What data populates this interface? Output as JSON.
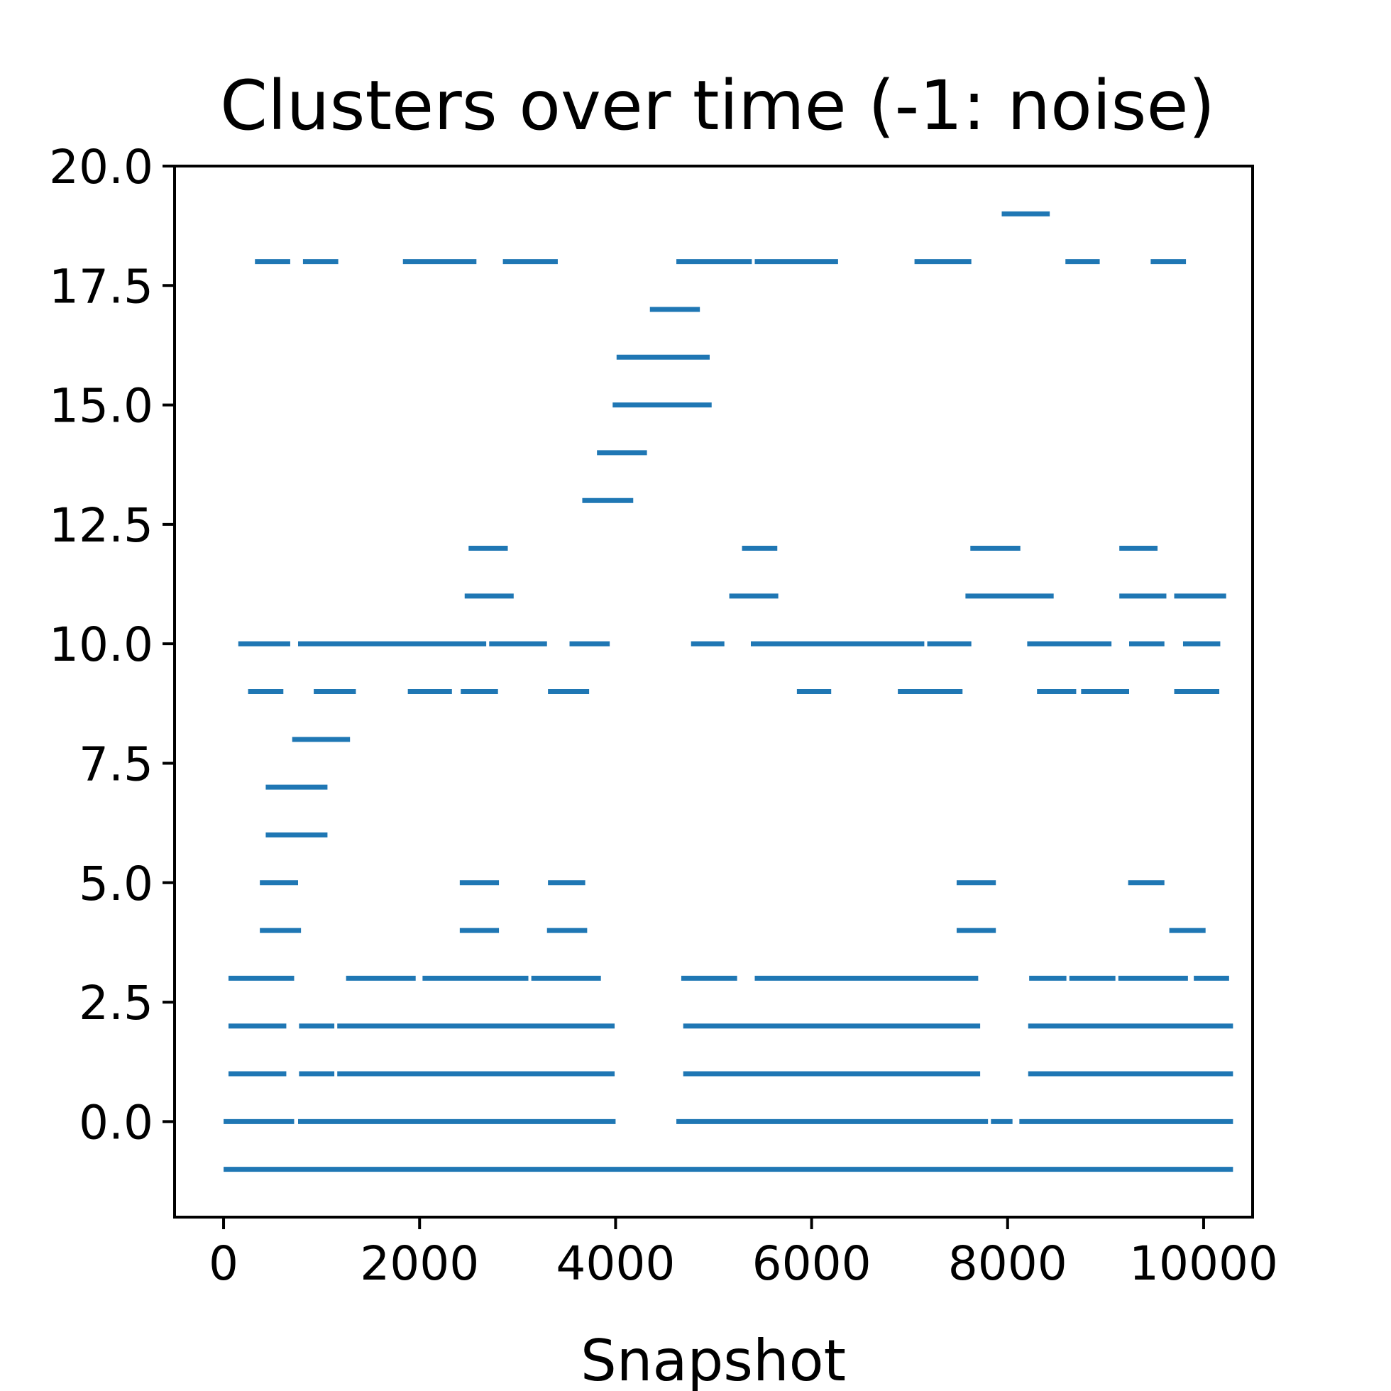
{
  "chart_data": {
    "type": "scatter",
    "title": "Clusters over time (-1: noise)",
    "xlabel": "Snapshot",
    "ylabel": "",
    "xlim": [
      -500,
      10500
    ],
    "ylim": [
      -2,
      20
    ],
    "x_ticks": [
      0,
      2000,
      4000,
      6000,
      8000,
      10000
    ],
    "x_tick_labels": [
      "0",
      "2000",
      "4000",
      "6000",
      "8000",
      "10000"
    ],
    "y_ticks": [
      0,
      2.5,
      5,
      7.5,
      10,
      12.5,
      15,
      17.5,
      20
    ],
    "y_tick_labels": [
      "0.0",
      "2.5",
      "5.0",
      "7.5",
      "10.0",
      "12.5",
      "15.0",
      "17.5",
      "20.0"
    ],
    "grid": false,
    "legend": "none",
    "marker": "horizontal-line segments (cluster id per snapshot)",
    "color": "#1f77b4",
    "series": [
      {
        "values": [
          {
            "y": -1,
            "x_start": 0,
            "x_end": 10300
          }
        ]
      },
      {
        "values": [
          {
            "y": 0,
            "x_start": 0,
            "x_end": 720
          },
          {
            "y": 0,
            "x_start": 760,
            "x_end": 4000
          },
          {
            "y": 0,
            "x_start": 4620,
            "x_end": 7800
          },
          {
            "y": 0,
            "x_start": 7830,
            "x_end": 8050
          },
          {
            "y": 0,
            "x_start": 8120,
            "x_end": 10300
          }
        ]
      },
      {
        "values": [
          {
            "y": 1,
            "x_start": 50,
            "x_end": 640
          },
          {
            "y": 1,
            "x_start": 770,
            "x_end": 1130
          },
          {
            "y": 1,
            "x_start": 1160,
            "x_end": 3990
          },
          {
            "y": 1,
            "x_start": 4690,
            "x_end": 7720
          },
          {
            "y": 1,
            "x_start": 8210,
            "x_end": 10300
          }
        ]
      },
      {
        "values": [
          {
            "y": 2,
            "x_start": 50,
            "x_end": 640
          },
          {
            "y": 2,
            "x_start": 770,
            "x_end": 1130
          },
          {
            "y": 2,
            "x_start": 1160,
            "x_end": 3990
          },
          {
            "y": 2,
            "x_start": 4690,
            "x_end": 7720
          },
          {
            "y": 2,
            "x_start": 8210,
            "x_end": 10300
          }
        ]
      },
      {
        "values": [
          {
            "y": 3,
            "x_start": 50,
            "x_end": 720
          },
          {
            "y": 3,
            "x_start": 1250,
            "x_end": 1960
          },
          {
            "y": 3,
            "x_start": 2030,
            "x_end": 3110
          },
          {
            "y": 3,
            "x_start": 3140,
            "x_end": 3850
          },
          {
            "y": 3,
            "x_start": 4670,
            "x_end": 5240
          },
          {
            "y": 3,
            "x_start": 5420,
            "x_end": 7700
          },
          {
            "y": 3,
            "x_start": 8220,
            "x_end": 8600
          },
          {
            "y": 3,
            "x_start": 8630,
            "x_end": 9100
          },
          {
            "y": 3,
            "x_start": 9130,
            "x_end": 9840
          },
          {
            "y": 3,
            "x_start": 9900,
            "x_end": 10260
          }
        ]
      },
      {
        "values": [
          {
            "y": 4,
            "x_start": 370,
            "x_end": 790
          },
          {
            "y": 4,
            "x_start": 2410,
            "x_end": 2810
          },
          {
            "y": 4,
            "x_start": 3300,
            "x_end": 3710
          },
          {
            "y": 4,
            "x_start": 7480,
            "x_end": 7880
          },
          {
            "y": 4,
            "x_start": 9650,
            "x_end": 10020
          }
        ]
      },
      {
        "values": [
          {
            "y": 5,
            "x_start": 370,
            "x_end": 760
          },
          {
            "y": 5,
            "x_start": 2410,
            "x_end": 2810
          },
          {
            "y": 5,
            "x_start": 3310,
            "x_end": 3690
          },
          {
            "y": 5,
            "x_start": 7480,
            "x_end": 7880
          },
          {
            "y": 5,
            "x_start": 9230,
            "x_end": 9600
          }
        ]
      },
      {
        "values": [
          {
            "y": 6,
            "x_start": 430,
            "x_end": 1060
          }
        ]
      },
      {
        "values": [
          {
            "y": 7,
            "x_start": 430,
            "x_end": 1060
          }
        ]
      },
      {
        "values": [
          {
            "y": 8,
            "x_start": 700,
            "x_end": 1290
          }
        ]
      },
      {
        "values": [
          {
            "y": 9,
            "x_start": 250,
            "x_end": 610
          },
          {
            "y": 9,
            "x_start": 920,
            "x_end": 1350
          },
          {
            "y": 9,
            "x_start": 1880,
            "x_end": 2330
          },
          {
            "y": 9,
            "x_start": 2420,
            "x_end": 2800
          },
          {
            "y": 9,
            "x_start": 3310,
            "x_end": 3730
          },
          {
            "y": 9,
            "x_start": 5850,
            "x_end": 6200
          },
          {
            "y": 9,
            "x_start": 6880,
            "x_end": 7540
          },
          {
            "y": 9,
            "x_start": 8300,
            "x_end": 8700
          },
          {
            "y": 9,
            "x_start": 8750,
            "x_end": 9240
          },
          {
            "y": 9,
            "x_start": 9700,
            "x_end": 10160
          }
        ]
      },
      {
        "values": [
          {
            "y": 10,
            "x_start": 150,
            "x_end": 680
          },
          {
            "y": 10,
            "x_start": 760,
            "x_end": 2680
          },
          {
            "y": 10,
            "x_start": 2710,
            "x_end": 3300
          },
          {
            "y": 10,
            "x_start": 3530,
            "x_end": 3940
          },
          {
            "y": 10,
            "x_start": 4770,
            "x_end": 5110
          },
          {
            "y": 10,
            "x_start": 5380,
            "x_end": 7150
          },
          {
            "y": 10,
            "x_start": 7180,
            "x_end": 7630
          },
          {
            "y": 10,
            "x_start": 8200,
            "x_end": 9060
          },
          {
            "y": 10,
            "x_start": 9240,
            "x_end": 9600
          },
          {
            "y": 10,
            "x_start": 9790,
            "x_end": 10170
          }
        ]
      },
      {
        "values": [
          {
            "y": 11,
            "x_start": 2460,
            "x_end": 2960
          },
          {
            "y": 11,
            "x_start": 5160,
            "x_end": 5660
          },
          {
            "y": 11,
            "x_start": 7570,
            "x_end": 8470
          },
          {
            "y": 11,
            "x_start": 9140,
            "x_end": 9620
          },
          {
            "y": 11,
            "x_start": 9700,
            "x_end": 10230
          }
        ]
      },
      {
        "values": [
          {
            "y": 12,
            "x_start": 2500,
            "x_end": 2900
          },
          {
            "y": 12,
            "x_start": 5290,
            "x_end": 5650
          },
          {
            "y": 12,
            "x_start": 7620,
            "x_end": 8130
          },
          {
            "y": 12,
            "x_start": 9140,
            "x_end": 9530
          }
        ]
      },
      {
        "values": [
          {
            "y": 13,
            "x_start": 3660,
            "x_end": 4180
          }
        ]
      },
      {
        "values": [
          {
            "y": 14,
            "x_start": 3810,
            "x_end": 4320
          }
        ]
      },
      {
        "values": [
          {
            "y": 15,
            "x_start": 3970,
            "x_end": 4980
          }
        ]
      },
      {
        "values": [
          {
            "y": 16,
            "x_start": 4010,
            "x_end": 4960
          }
        ]
      },
      {
        "values": [
          {
            "y": 17,
            "x_start": 4350,
            "x_end": 4860
          }
        ]
      },
      {
        "values": [
          {
            "y": 18,
            "x_start": 320,
            "x_end": 680
          },
          {
            "y": 18,
            "x_start": 810,
            "x_end": 1170
          },
          {
            "y": 18,
            "x_start": 1830,
            "x_end": 2580
          },
          {
            "y": 18,
            "x_start": 2850,
            "x_end": 3410
          },
          {
            "y": 18,
            "x_start": 4620,
            "x_end": 5390
          },
          {
            "y": 18,
            "x_start": 5420,
            "x_end": 6270
          },
          {
            "y": 18,
            "x_start": 7050,
            "x_end": 7630
          },
          {
            "y": 18,
            "x_start": 8590,
            "x_end": 8940
          },
          {
            "y": 18,
            "x_start": 9460,
            "x_end": 9820
          }
        ]
      },
      {
        "values": [
          {
            "y": 19,
            "x_start": 7940,
            "x_end": 8430
          }
        ]
      }
    ]
  }
}
